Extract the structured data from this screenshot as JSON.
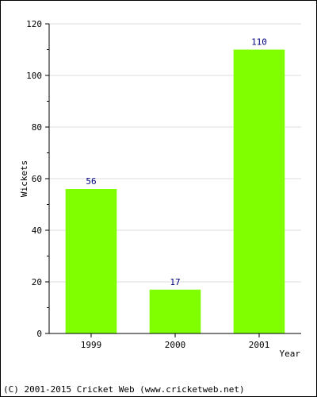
{
  "chart_data": {
    "type": "bar",
    "categories": [
      "1999",
      "2000",
      "2001"
    ],
    "values": [
      56,
      17,
      110
    ],
    "data_labels": [
      "56",
      "17",
      "110"
    ],
    "title": "",
    "xlabel": "Year",
    "ylabel": "Wickets",
    "ylim": [
      0,
      120
    ],
    "yticks": [
      "0",
      "20",
      "40",
      "60",
      "80",
      "100",
      "120"
    ],
    "bar_color": "#80ff00",
    "label_color": "#00007f",
    "grid": true,
    "legend": "none"
  },
  "footer": {
    "copyright": "(C) 2001-2015 Cricket Web (www.cricketweb.net)"
  }
}
